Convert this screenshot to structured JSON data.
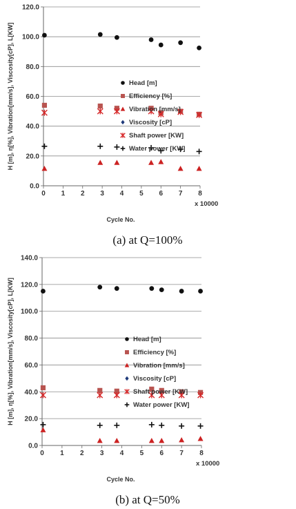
{
  "chart_data": [
    {
      "type": "scatter",
      "caption": "(a)  at  Q=100%",
      "xlabel": "Cycle No.",
      "ylabel": "H [m],  η[%], Vibration[mm/s], Viscosity[cP], L[KW]",
      "x_multiplier": "x 10000",
      "xlim": [
        0,
        8
      ],
      "ylim": [
        0,
        120
      ],
      "y_ticks": [
        "0.0",
        "20.0",
        "40.0",
        "60.0",
        "80.0",
        "100.0",
        "120.0"
      ],
      "x_ticks": [
        "0",
        "1",
        "2",
        "3",
        "4",
        "5",
        "6",
        "7",
        "8"
      ],
      "grid": "horizontal",
      "legend_position": "right",
      "series": [
        {
          "name": "Head [m]",
          "marker": "circle",
          "color": "#111111",
          "points": [
            [
              0.05,
              101
            ],
            [
              2.9,
              101.5
            ],
            [
              3.75,
              99.5
            ],
            [
              5.5,
              98
            ],
            [
              6,
              94.5
            ],
            [
              7,
              96
            ],
            [
              7.95,
              92.5
            ]
          ]
        },
        {
          "name": "Efficiency [%]",
          "marker": "square",
          "color": "#b85450",
          "points": [
            [
              0.05,
              54
            ],
            [
              2.9,
              53.5
            ],
            [
              3.75,
              52
            ],
            [
              5.5,
              52
            ],
            [
              6,
              49
            ],
            [
              7,
              50
            ],
            [
              7.95,
              48
            ]
          ]
        },
        {
          "name": "Vibration [mm/s]",
          "marker": "triangle",
          "color": "#cc2222",
          "points": [
            [
              0.05,
              11.5
            ],
            [
              2.9,
              15.5
            ],
            [
              3.75,
              15.5
            ],
            [
              5.5,
              15.5
            ],
            [
              6,
              16
            ],
            [
              7,
              11.5
            ],
            [
              7.95,
              11.5
            ]
          ]
        },
        {
          "name": "Viscosity [cP]",
          "marker": "diamond",
          "color": "#1f3a7a",
          "points": []
        },
        {
          "name": "Shaft power [KW]",
          "marker": "asterisk",
          "color": "#d62728",
          "points": [
            [
              0.05,
              49
            ],
            [
              2.9,
              50
            ],
            [
              3.75,
              50
            ],
            [
              5.5,
              50
            ],
            [
              6,
              48
            ],
            [
              7,
              49.5
            ],
            [
              7.95,
              47.5
            ]
          ]
        },
        {
          "name": "Water power [KW]",
          "marker": "plus",
          "color": "#111111",
          "points": [
            [
              0.05,
              26.5
            ],
            [
              2.9,
              26.5
            ],
            [
              3.75,
              26
            ],
            [
              5.5,
              25.5
            ],
            [
              6,
              23.5
            ],
            [
              7,
              24.5
            ],
            [
              7.95,
              23
            ]
          ]
        }
      ]
    },
    {
      "type": "scatter",
      "caption": "(b)  at  Q=50%",
      "xlabel": "Cycle No.",
      "ylabel": "H [m],  η[%], Vibration[mm/s], Viscosity[cP], L[KW]",
      "x_multiplier": "x 10000",
      "xlim": [
        0,
        8
      ],
      "ylim": [
        0,
        140
      ],
      "y_ticks": [
        "0.0",
        "20.0",
        "40.0",
        "60.0",
        "80.0",
        "100.0",
        "120.0",
        "140.0"
      ],
      "x_ticks": [
        "0",
        "1",
        "2",
        "3",
        "4",
        "5",
        "6",
        "7",
        "8"
      ],
      "grid": "horizontal",
      "legend_position": "right",
      "series": [
        {
          "name": "Head [m]",
          "marker": "circle",
          "color": "#111111",
          "points": [
            [
              0.05,
              115
            ],
            [
              2.9,
              118
            ],
            [
              3.75,
              117
            ],
            [
              5.5,
              117
            ],
            [
              6,
              116
            ],
            [
              7,
              115
            ],
            [
              7.95,
              115
            ]
          ]
        },
        {
          "name": "Efficiency [%]",
          "marker": "square",
          "color": "#b85450",
          "points": [
            [
              0.05,
              43
            ],
            [
              2.9,
              41
            ],
            [
              3.75,
              40.5
            ],
            [
              5.5,
              42
            ],
            [
              6,
              41
            ],
            [
              7,
              40
            ],
            [
              7.95,
              39.5
            ]
          ]
        },
        {
          "name": "Vibration [mm/s]",
          "marker": "triangle",
          "color": "#cc2222",
          "points": [
            [
              0.05,
              11.5
            ],
            [
              2.9,
              3.5
            ],
            [
              3.75,
              3.5
            ],
            [
              5.5,
              3.5
            ],
            [
              6,
              3.5
            ],
            [
              7,
              4
            ],
            [
              7.95,
              5
            ]
          ]
        },
        {
          "name": "Viscosity [cP]",
          "marker": "diamond",
          "color": "#1f3a7a",
          "points": []
        },
        {
          "name": "Shaft power [KW]",
          "marker": "asterisk",
          "color": "#d62728",
          "points": [
            [
              0.05,
              37.5
            ],
            [
              2.9,
              37.5
            ],
            [
              3.75,
              37.5
            ],
            [
              5.5,
              37.5
            ],
            [
              6,
              37.5
            ],
            [
              7,
              37.5
            ],
            [
              7.95,
              37.5
            ]
          ]
        },
        {
          "name": "Water power [KW]",
          "marker": "plus",
          "color": "#111111",
          "points": [
            [
              0.05,
              15.5
            ],
            [
              2.9,
              15
            ],
            [
              3.75,
              15
            ],
            [
              5.5,
              15.5
            ],
            [
              6,
              15
            ],
            [
              7,
              14.5
            ],
            [
              7.95,
              14.5
            ]
          ]
        }
      ]
    }
  ]
}
